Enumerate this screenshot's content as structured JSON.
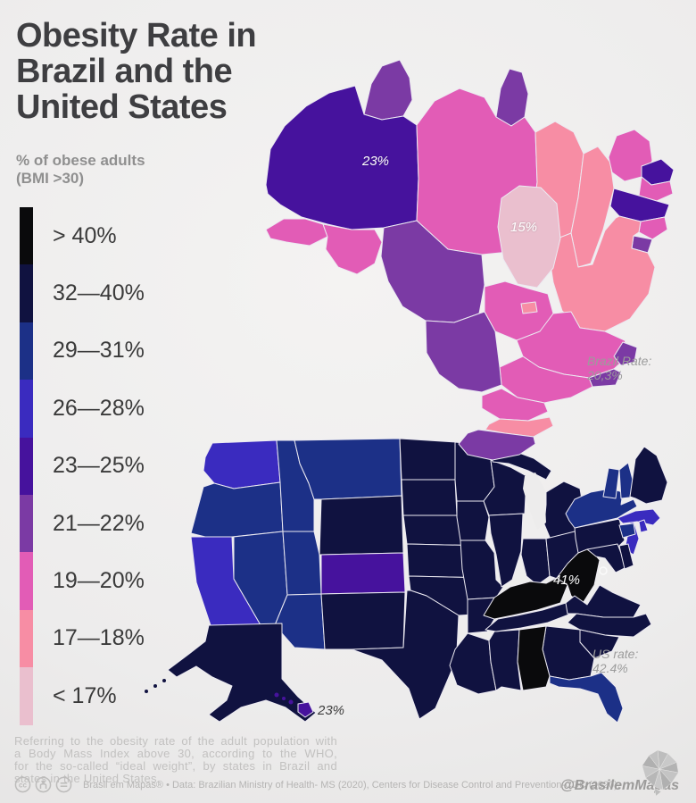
{
  "header": {
    "title_lines": [
      "Obesity Rate in",
      "Brazil and the",
      "United States"
    ],
    "subtitle_lines": [
      "% of obese adults",
      "(BMI >30)"
    ]
  },
  "theme": {
    "background": "#edecec",
    "title_color": "#3e3e41",
    "muted_text": "#9c9c9c",
    "border_color": "#ffffff"
  },
  "legend": {
    "items": [
      {
        "label": "> 40%",
        "color": "#0a0a0c"
      },
      {
        "label": "32—40%",
        "color": "#101240"
      },
      {
        "label": "29—31%",
        "color": "#1c3087"
      },
      {
        "label": "26—28%",
        "color": "#3a2bbf"
      },
      {
        "label": "23—25%",
        "color": "#46129d"
      },
      {
        "label": "21—22%",
        "color": "#7b3aa4"
      },
      {
        "label": "19—20%",
        "color": "#e25cb6"
      },
      {
        "label": "17—18%",
        "color": "#f78da4"
      },
      {
        "label": "< 17%",
        "color": "#eabfce"
      }
    ]
  },
  "brazil_map": {
    "value_labels": {
      "amazonas": "23%",
      "tocantins": "15%"
    },
    "rate_note_lines": [
      "Brazil Rate:",
      "20,3%"
    ],
    "states": [
      {
        "id": "RR",
        "bucket": 5
      },
      {
        "id": "AP",
        "bucket": 5
      },
      {
        "id": "AM",
        "bucket": 4
      },
      {
        "id": "PA",
        "bucket": 6
      },
      {
        "id": "MA",
        "bucket": 7
      },
      {
        "id": "PI",
        "bucket": 7
      },
      {
        "id": "CE",
        "bucket": 6
      },
      {
        "id": "RN",
        "bucket": 4
      },
      {
        "id": "PB",
        "bucket": 6
      },
      {
        "id": "PE",
        "bucket": 4
      },
      {
        "id": "AL",
        "bucket": 6
      },
      {
        "id": "SE",
        "bucket": 5
      },
      {
        "id": "BA",
        "bucket": 7
      },
      {
        "id": "TO",
        "bucket": 8
      },
      {
        "id": "AC",
        "bucket": 6
      },
      {
        "id": "RO",
        "bucket": 6
      },
      {
        "id": "MT",
        "bucket": 5
      },
      {
        "id": "GO",
        "bucket": 6
      },
      {
        "id": "DF",
        "bucket": 7
      },
      {
        "id": "MG",
        "bucket": 6
      },
      {
        "id": "ES",
        "bucket": 5
      },
      {
        "id": "RJ",
        "bucket": 5
      },
      {
        "id": "SP",
        "bucket": 6
      },
      {
        "id": "MS",
        "bucket": 5
      },
      {
        "id": "PR",
        "bucket": 6
      },
      {
        "id": "SC",
        "bucket": 7
      },
      {
        "id": "RS",
        "bucket": 5
      }
    ]
  },
  "us_map": {
    "value_labels": {
      "west_virginia": "41%",
      "hawaii": "23%"
    },
    "rate_note_lines": [
      "US rate:",
      "42.4%"
    ],
    "states": [
      {
        "id": "WA",
        "bucket": 3
      },
      {
        "id": "OR",
        "bucket": 2
      },
      {
        "id": "CA",
        "bucket": 3
      },
      {
        "id": "NV",
        "bucket": 2
      },
      {
        "id": "ID",
        "bucket": 2
      },
      {
        "id": "MT",
        "bucket": 2
      },
      {
        "id": "WY",
        "bucket": 1
      },
      {
        "id": "UT",
        "bucket": 2
      },
      {
        "id": "CO",
        "bucket": 4
      },
      {
        "id": "AZ",
        "bucket": 2
      },
      {
        "id": "NM",
        "bucket": 1
      },
      {
        "id": "ND",
        "bucket": 1
      },
      {
        "id": "SD",
        "bucket": 1
      },
      {
        "id": "NE",
        "bucket": 1
      },
      {
        "id": "KS",
        "bucket": 1
      },
      {
        "id": "OK",
        "bucket": 1
      },
      {
        "id": "TX",
        "bucket": 1
      },
      {
        "id": "MN",
        "bucket": 1
      },
      {
        "id": "IA",
        "bucket": 1
      },
      {
        "id": "MO",
        "bucket": 1
      },
      {
        "id": "WI",
        "bucket": 1
      },
      {
        "id": "IL",
        "bucket": 1
      },
      {
        "id": "IN",
        "bucket": 1
      },
      {
        "id": "OH",
        "bucket": 1
      },
      {
        "id": "MI",
        "bucket": 1
      },
      {
        "id": "KY",
        "bucket": 0
      },
      {
        "id": "WV",
        "bucket": 0
      },
      {
        "id": "VA",
        "bucket": 1
      },
      {
        "id": "NC",
        "bucket": 1
      },
      {
        "id": "SC",
        "bucket": 1
      },
      {
        "id": "GA",
        "bucket": 1
      },
      {
        "id": "AL",
        "bucket": 0
      },
      {
        "id": "MS",
        "bucket": 1
      },
      {
        "id": "TN",
        "bucket": 1
      },
      {
        "id": "AR",
        "bucket": 1
      },
      {
        "id": "LA",
        "bucket": 1
      },
      {
        "id": "FL",
        "bucket": 2
      },
      {
        "id": "PA",
        "bucket": 1
      },
      {
        "id": "NY",
        "bucket": 2
      },
      {
        "id": "NJ",
        "bucket": 3
      },
      {
        "id": "DE",
        "bucket": 1
      },
      {
        "id": "MD",
        "bucket": 1
      },
      {
        "id": "CT",
        "bucket": 2
      },
      {
        "id": "RI",
        "bucket": 3
      },
      {
        "id": "MA",
        "bucket": 3
      },
      {
        "id": "VT",
        "bucket": 2
      },
      {
        "id": "NH",
        "bucket": 2
      },
      {
        "id": "ME",
        "bucket": 1
      },
      {
        "id": "AK",
        "bucket": 1
      },
      {
        "id": "HI",
        "bucket": 4
      }
    ]
  },
  "footnote": {
    "lines": [
      "Referring to the obesity rate of the adult population with",
      "a Body Mass Index above 30, according to the WHO,",
      "for the so-called “ideal weight”, by states in Brazil and",
      "states in the United States."
    ]
  },
  "credits": {
    "license_icons": [
      "cc",
      "attribution",
      "no-derivatives"
    ],
    "source_text": "Brasil em Mapas® • Data: Brazilian Ministry of Health- MS (2020), Centers for Disease Control and Prevention-CDC (2020).",
    "handle": "@BrasilemMapas"
  }
}
